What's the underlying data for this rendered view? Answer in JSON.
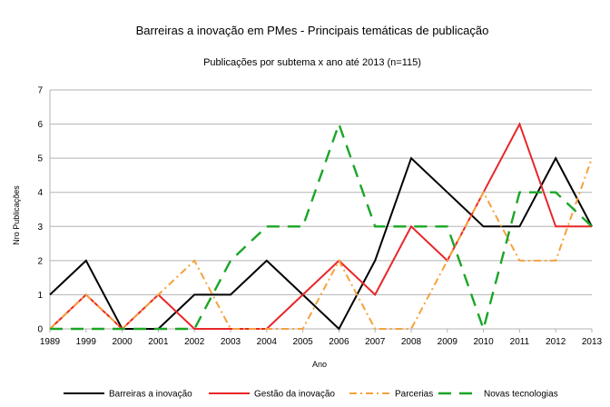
{
  "chart_data": {
    "type": "line",
    "title": "Barreiras a inovação em PMes - Principais temáticas de publicação",
    "subtitle": "Publicações por subtema x ano até 2013 (n=115)",
    "xlabel": "Ano",
    "ylabel": "Nro Publicações",
    "ylim": [
      0,
      7
    ],
    "yticks": [
      "0",
      "1",
      "2",
      "3",
      "4",
      "5",
      "6",
      "7"
    ],
    "grid": true,
    "legend_position": "bottom",
    "categories": [
      "1989",
      "1999",
      "2000",
      "2001",
      "2002",
      "2003",
      "2004",
      "2005",
      "2006",
      "2007",
      "2008",
      "2009",
      "2010",
      "2011",
      "2012",
      "2013"
    ],
    "series": [
      {
        "name": "Barreiras a inovação",
        "color": "#000000",
        "style": "solid",
        "values": [
          1,
          2,
          0,
          0,
          1,
          1,
          2,
          1,
          0,
          2,
          5,
          4,
          3,
          3,
          5,
          3
        ]
      },
      {
        "name": "Gestão da inovação",
        "color": "#e8262a",
        "style": "solid",
        "values": [
          0,
          1,
          0,
          1,
          0,
          0,
          0,
          1,
          2,
          1,
          3,
          2,
          4,
          6,
          3,
          3
        ]
      },
      {
        "name": "Parcerias",
        "color": "#f5a23c",
        "style": "dashdot",
        "values": [
          0,
          1,
          0,
          1,
          2,
          0,
          0,
          0,
          2,
          0,
          0,
          2,
          4,
          2,
          2,
          5
        ]
      },
      {
        "name": "Novas tecnologias",
        "color": "#1aa626",
        "style": "dashed",
        "values": [
          0,
          0,
          0,
          0,
          0,
          2,
          3,
          3,
          6,
          3,
          3,
          3,
          0,
          4,
          4,
          3
        ]
      }
    ]
  }
}
